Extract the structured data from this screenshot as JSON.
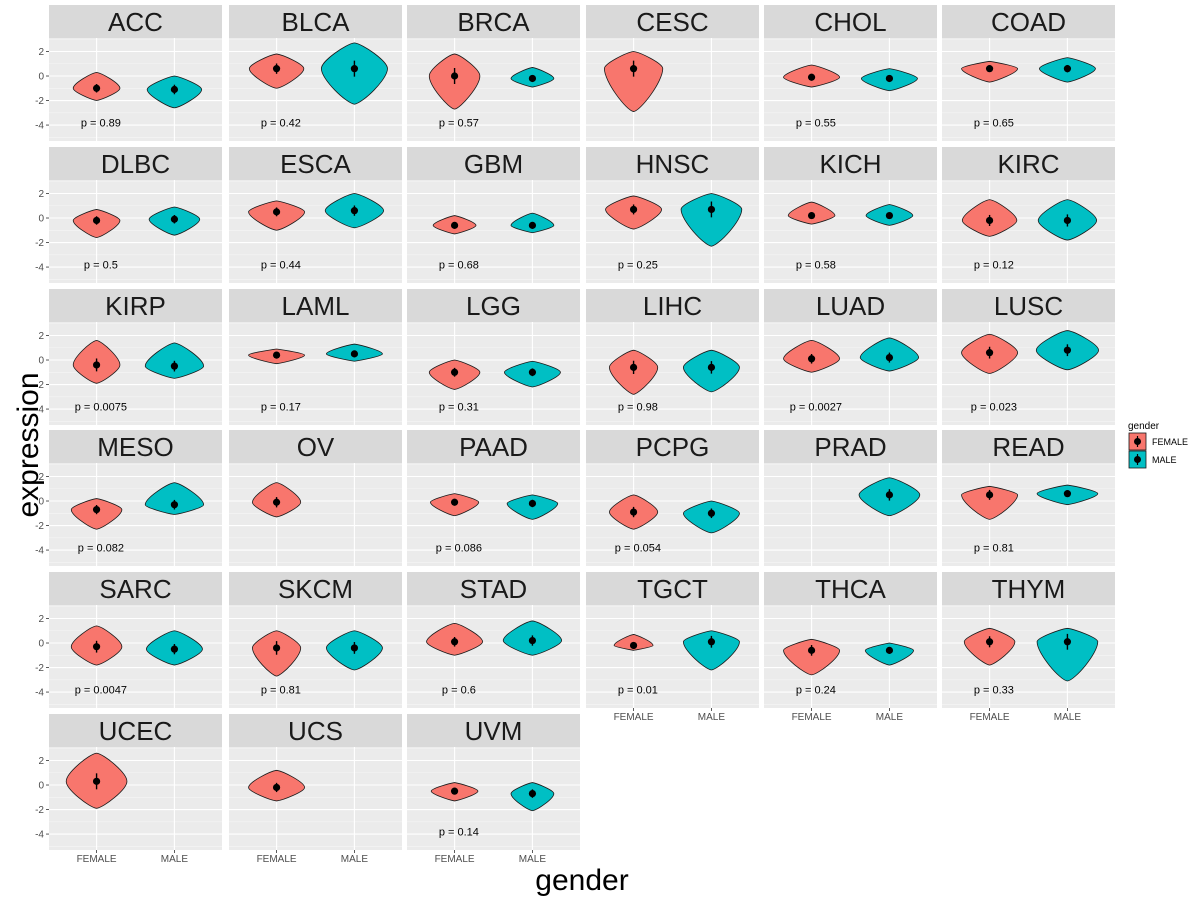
{
  "chart_data": {
    "type": "violin",
    "xlabel": "gender",
    "ylabel": "expression",
    "categories": [
      "FEMALE",
      "MALE"
    ],
    "ylim": [
      -5.3,
      3.1
    ],
    "yticks": [
      -4,
      -2,
      0,
      2
    ],
    "ytick_labels": [
      "-4",
      "-2",
      "0",
      "2"
    ],
    "colors": {
      "FEMALE": "#F8766D",
      "MALE": "#00BFC4"
    },
    "legend": {
      "title": "gender",
      "entries": [
        "FEMALE",
        "MALE"
      ],
      "position": "right"
    },
    "panels": [
      {
        "name": "ACC",
        "p": "p = 0.89",
        "groups": [
          {
            "g": "FEMALE",
            "mean": -1.0,
            "min": -2.0,
            "max": 0.3,
            "w": 0.6
          },
          {
            "g": "MALE",
            "mean": -1.1,
            "min": -2.6,
            "max": 0.0,
            "w": 0.7
          }
        ]
      },
      {
        "name": "BLCA",
        "p": "p = 0.42",
        "groups": [
          {
            "g": "FEMALE",
            "mean": 0.6,
            "min": -1.0,
            "max": 1.8,
            "w": 0.7
          },
          {
            "g": "MALE",
            "mean": 0.6,
            "min": -2.3,
            "max": 2.7,
            "w": 0.85
          }
        ]
      },
      {
        "name": "BRCA",
        "p": "p = 0.57",
        "groups": [
          {
            "g": "FEMALE",
            "mean": 0.0,
            "min": -2.7,
            "max": 1.8,
            "w": 0.65
          },
          {
            "g": "MALE",
            "mean": -0.2,
            "min": -0.9,
            "max": 0.7,
            "w": 0.55
          }
        ]
      },
      {
        "name": "CESC",
        "p": "",
        "groups": [
          {
            "g": "FEMALE",
            "mean": 0.6,
            "min": -2.9,
            "max": 2.0,
            "w": 0.75
          }
        ]
      },
      {
        "name": "CHOL",
        "p": "p = 0.55",
        "groups": [
          {
            "g": "FEMALE",
            "mean": -0.1,
            "min": -0.9,
            "max": 0.9,
            "w": 0.72
          },
          {
            "g": "MALE",
            "mean": -0.2,
            "min": -1.2,
            "max": 0.6,
            "w": 0.72
          }
        ]
      },
      {
        "name": "COAD",
        "p": "p = 0.65",
        "groups": [
          {
            "g": "FEMALE",
            "mean": 0.6,
            "min": -0.5,
            "max": 1.2,
            "w": 0.72
          },
          {
            "g": "MALE",
            "mean": 0.6,
            "min": -0.5,
            "max": 1.5,
            "w": 0.72
          }
        ]
      },
      {
        "name": "DLBC",
        "p": "p = 0.5",
        "groups": [
          {
            "g": "FEMALE",
            "mean": -0.2,
            "min": -1.6,
            "max": 0.7,
            "w": 0.6
          },
          {
            "g": "MALE",
            "mean": -0.1,
            "min": -1.4,
            "max": 0.9,
            "w": 0.65
          }
        ]
      },
      {
        "name": "ESCA",
        "p": "p = 0.44",
        "groups": [
          {
            "g": "FEMALE",
            "mean": 0.5,
            "min": -1.0,
            "max": 1.4,
            "w": 0.72
          },
          {
            "g": "MALE",
            "mean": 0.6,
            "min": -0.8,
            "max": 2.0,
            "w": 0.75
          }
        ]
      },
      {
        "name": "GBM",
        "p": "p = 0.68",
        "groups": [
          {
            "g": "FEMALE",
            "mean": -0.6,
            "min": -1.3,
            "max": 0.2,
            "w": 0.55
          },
          {
            "g": "MALE",
            "mean": -0.6,
            "min": -1.2,
            "max": 0.4,
            "w": 0.55
          }
        ]
      },
      {
        "name": "HNSC",
        "p": "p = 0.25",
        "groups": [
          {
            "g": "FEMALE",
            "mean": 0.7,
            "min": -0.9,
            "max": 1.8,
            "w": 0.72
          },
          {
            "g": "MALE",
            "mean": 0.7,
            "min": -2.3,
            "max": 2.0,
            "w": 0.78
          }
        ]
      },
      {
        "name": "KICH",
        "p": "p = 0.58",
        "groups": [
          {
            "g": "FEMALE",
            "mean": 0.2,
            "min": -0.5,
            "max": 1.3,
            "w": 0.6
          },
          {
            "g": "MALE",
            "mean": 0.2,
            "min": -0.6,
            "max": 1.1,
            "w": 0.6
          }
        ]
      },
      {
        "name": "KIRC",
        "p": "p = 0.12",
        "groups": [
          {
            "g": "FEMALE",
            "mean": -0.2,
            "min": -1.5,
            "max": 1.5,
            "w": 0.7
          },
          {
            "g": "MALE",
            "mean": -0.2,
            "min": -1.8,
            "max": 1.5,
            "w": 0.75
          }
        ]
      },
      {
        "name": "KIRP",
        "p": "p = 0.0075",
        "groups": [
          {
            "g": "FEMALE",
            "mean": -0.4,
            "min": -1.9,
            "max": 1.6,
            "w": 0.6
          },
          {
            "g": "MALE",
            "mean": -0.5,
            "min": -1.5,
            "max": 1.4,
            "w": 0.75
          }
        ]
      },
      {
        "name": "LAML",
        "p": "p = 0.17",
        "groups": [
          {
            "g": "FEMALE",
            "mean": 0.4,
            "min": -0.3,
            "max": 0.9,
            "w": 0.72
          },
          {
            "g": "MALE",
            "mean": 0.5,
            "min": -0.1,
            "max": 1.3,
            "w": 0.72
          }
        ]
      },
      {
        "name": "LGG",
        "p": "p = 0.31",
        "groups": [
          {
            "g": "FEMALE",
            "mean": -1.0,
            "min": -2.4,
            "max": 0.0,
            "w": 0.65
          },
          {
            "g": "MALE",
            "mean": -1.0,
            "min": -2.2,
            "max": -0.1,
            "w": 0.72
          }
        ]
      },
      {
        "name": "LIHC",
        "p": "p = 0.98",
        "groups": [
          {
            "g": "FEMALE",
            "mean": -0.6,
            "min": -2.8,
            "max": 0.8,
            "w": 0.62
          },
          {
            "g": "MALE",
            "mean": -0.6,
            "min": -2.6,
            "max": 0.8,
            "w": 0.72
          }
        ]
      },
      {
        "name": "LUAD",
        "p": "p = 0.0027",
        "groups": [
          {
            "g": "FEMALE",
            "mean": 0.1,
            "min": -1.0,
            "max": 1.6,
            "w": 0.72
          },
          {
            "g": "MALE",
            "mean": 0.2,
            "min": -0.9,
            "max": 1.8,
            "w": 0.75
          }
        ]
      },
      {
        "name": "LUSC",
        "p": "p = 0.023",
        "groups": [
          {
            "g": "FEMALE",
            "mean": 0.6,
            "min": -1.1,
            "max": 2.1,
            "w": 0.72
          },
          {
            "g": "MALE",
            "mean": 0.8,
            "min": -0.8,
            "max": 2.4,
            "w": 0.8
          }
        ]
      },
      {
        "name": "MESO",
        "p": "p = 0.082",
        "groups": [
          {
            "g": "FEMALE",
            "mean": -0.7,
            "min": -2.3,
            "max": 0.2,
            "w": 0.65
          },
          {
            "g": "MALE",
            "mean": -0.3,
            "min": -1.1,
            "max": 1.5,
            "w": 0.75
          }
        ]
      },
      {
        "name": "OV",
        "p": "",
        "groups": [
          {
            "g": "FEMALE",
            "mean": -0.1,
            "min": -1.3,
            "max": 1.5,
            "w": 0.62
          }
        ]
      },
      {
        "name": "PAAD",
        "p": "p = 0.086",
        "groups": [
          {
            "g": "FEMALE",
            "mean": -0.1,
            "min": -1.2,
            "max": 0.6,
            "w": 0.62
          },
          {
            "g": "MALE",
            "mean": -0.2,
            "min": -1.5,
            "max": 0.5,
            "w": 0.65
          }
        ]
      },
      {
        "name": "PCPG",
        "p": "p = 0.054",
        "groups": [
          {
            "g": "FEMALE",
            "mean": -0.9,
            "min": -2.3,
            "max": 0.5,
            "w": 0.62
          },
          {
            "g": "MALE",
            "mean": -1.0,
            "min": -2.6,
            "max": 0.0,
            "w": 0.72
          }
        ]
      },
      {
        "name": "PRAD",
        "p": "",
        "groups": [
          {
            "g": "MALE",
            "mean": 0.5,
            "min": -1.2,
            "max": 1.9,
            "w": 0.78
          }
        ]
      },
      {
        "name": "READ",
        "p": "p = 0.81",
        "groups": [
          {
            "g": "FEMALE",
            "mean": 0.5,
            "min": -1.5,
            "max": 1.2,
            "w": 0.72
          },
          {
            "g": "MALE",
            "mean": 0.6,
            "min": -0.3,
            "max": 1.3,
            "w": 0.78
          }
        ]
      },
      {
        "name": "SARC",
        "p": "p = 0.0047",
        "groups": [
          {
            "g": "FEMALE",
            "mean": -0.3,
            "min": -1.8,
            "max": 1.4,
            "w": 0.65
          },
          {
            "g": "MALE",
            "mean": -0.5,
            "min": -1.8,
            "max": 1.0,
            "w": 0.72
          }
        ]
      },
      {
        "name": "SKCM",
        "p": "p = 0.81",
        "groups": [
          {
            "g": "FEMALE",
            "mean": -0.4,
            "min": -2.7,
            "max": 1.0,
            "w": 0.62
          },
          {
            "g": "MALE",
            "mean": -0.4,
            "min": -2.2,
            "max": 1.0,
            "w": 0.72
          }
        ]
      },
      {
        "name": "STAD",
        "p": "p = 0.6",
        "groups": [
          {
            "g": "FEMALE",
            "mean": 0.1,
            "min": -1.0,
            "max": 1.6,
            "w": 0.72
          },
          {
            "g": "MALE",
            "mean": 0.2,
            "min": -1.0,
            "max": 1.8,
            "w": 0.75
          }
        ]
      },
      {
        "name": "TGCT",
        "p": "p = 0.01",
        "groups": [
          {
            "g": "FEMALE",
            "mean": -0.2,
            "min": -0.6,
            "max": 0.7,
            "w": 0.5
          },
          {
            "g": "MALE",
            "mean": 0.1,
            "min": -2.2,
            "max": 1.0,
            "w": 0.72
          }
        ]
      },
      {
        "name": "THCA",
        "p": "p = 0.24",
        "groups": [
          {
            "g": "FEMALE",
            "mean": -0.6,
            "min": -2.6,
            "max": 0.3,
            "w": 0.72
          },
          {
            "g": "MALE",
            "mean": -0.6,
            "min": -1.8,
            "max": 0.0,
            "w": 0.62
          }
        ]
      },
      {
        "name": "THYM",
        "p": "p = 0.33",
        "groups": [
          {
            "g": "FEMALE",
            "mean": 0.1,
            "min": -1.8,
            "max": 1.2,
            "w": 0.65
          },
          {
            "g": "MALE",
            "mean": 0.1,
            "min": -3.1,
            "max": 1.2,
            "w": 0.78
          }
        ]
      },
      {
        "name": "UCEC",
        "p": "",
        "groups": [
          {
            "g": "FEMALE",
            "mean": 0.3,
            "min": -1.9,
            "max": 2.6,
            "w": 0.78
          }
        ]
      },
      {
        "name": "UCS",
        "p": "",
        "groups": [
          {
            "g": "FEMALE",
            "mean": -0.2,
            "min": -1.3,
            "max": 1.2,
            "w": 0.72
          }
        ]
      },
      {
        "name": "UVM",
        "p": "p = 0.14",
        "groups": [
          {
            "g": "FEMALE",
            "mean": -0.5,
            "min": -1.3,
            "max": 0.2,
            "w": 0.6
          },
          {
            "g": "MALE",
            "mean": -0.7,
            "min": -2.1,
            "max": 0.2,
            "w": 0.55
          }
        ]
      }
    ]
  }
}
